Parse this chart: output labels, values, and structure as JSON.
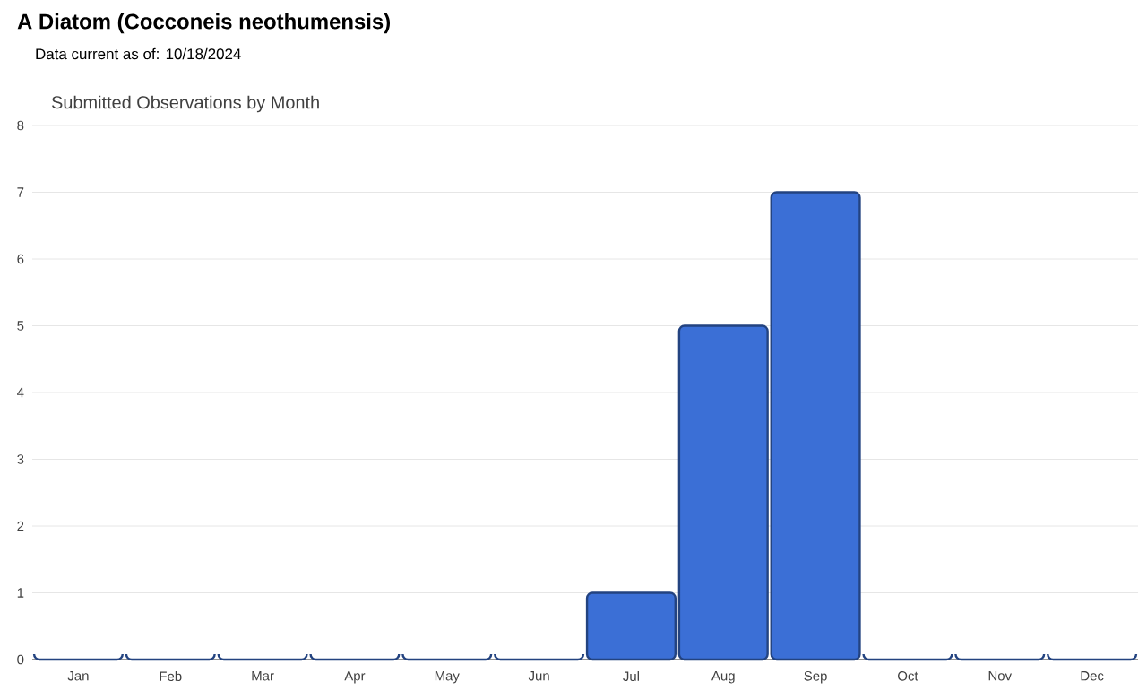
{
  "chart_data": {
    "type": "bar",
    "title": "A Diatom   (Cocconeis neothumensis)",
    "subtitle": "Data current as of: 10/18/2024",
    "annotations": [
      "Submitted Observations by Month"
    ],
    "categories": [
      "Jan",
      "Feb",
      "Mar",
      "Apr",
      "May",
      "Jun",
      "Jul",
      "Aug",
      "Sep",
      "Oct",
      "Nov",
      "Dec"
    ],
    "values": [
      0,
      0,
      0,
      0,
      0,
      0,
      1,
      5,
      7,
      0,
      0,
      0
    ],
    "color": "#3b6fd6",
    "ylim": [
      0,
      8
    ],
    "yticks": [
      0,
      1,
      2,
      3,
      4,
      5,
      6,
      7,
      8
    ],
    "grid": "y"
  }
}
